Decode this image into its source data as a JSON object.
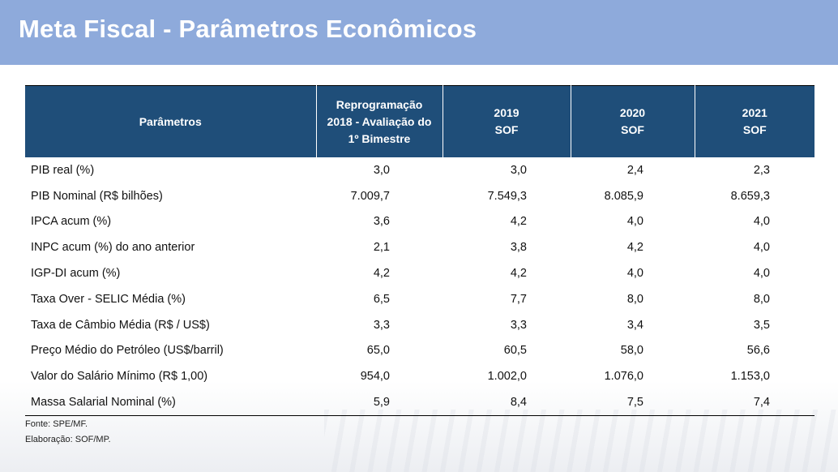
{
  "title": "Meta Fiscal - Parâmetros Econômicos",
  "table": {
    "headers": {
      "param": "Parâmetros",
      "col1": [
        "Reprogramação",
        "2018 - Avaliação do",
        "1º Bimestre"
      ],
      "col2": [
        "2019",
        "SOF"
      ],
      "col3": [
        "2020",
        "SOF"
      ],
      "col4": [
        "2021",
        "SOF"
      ]
    },
    "rows": [
      {
        "label": "PIB real (%)",
        "v": [
          "3,0",
          "3,0",
          "2,4",
          "2,3"
        ]
      },
      {
        "label": "PIB Nominal (R$ bilhões)",
        "v": [
          "7.009,7",
          "7.549,3",
          "8.085,9",
          "8.659,3"
        ]
      },
      {
        "label": "IPCA acum (%)",
        "v": [
          "3,6",
          "4,2",
          "4,0",
          "4,0"
        ]
      },
      {
        "label": "INPC acum (%) do ano anterior",
        "v": [
          "2,1",
          "3,8",
          "4,2",
          "4,0"
        ]
      },
      {
        "label": "IGP-DI acum (%)",
        "v": [
          "4,2",
          "4,2",
          "4,0",
          "4,0"
        ]
      },
      {
        "label": "Taxa Over - SELIC Média (%)",
        "v": [
          "6,5",
          "7,7",
          "8,0",
          "8,0"
        ]
      },
      {
        "label": "Taxa de Câmbio Média (R$ / US$)",
        "v": [
          "3,3",
          "3,3",
          "3,4",
          "3,5"
        ]
      },
      {
        "label": "Preço Médio do Petróleo (US$/barril)",
        "v": [
          "65,0",
          "60,5",
          "58,0",
          "56,6"
        ]
      },
      {
        "label": "Valor do Salário Mínimo (R$ 1,00)",
        "v": [
          "954,0",
          "1.002,0",
          "1.076,0",
          "1.153,0"
        ]
      },
      {
        "label": "Massa Salarial Nominal (%)",
        "v": [
          "5,9",
          "8,4",
          "7,5",
          "7,4"
        ]
      }
    ]
  },
  "footnotes": {
    "source": "Fonte: SPE/MF.",
    "prepared": "Elaboração: SOF/MP."
  },
  "colors": {
    "header_band": "#8eaadb",
    "table_header": "#1f4e79"
  }
}
